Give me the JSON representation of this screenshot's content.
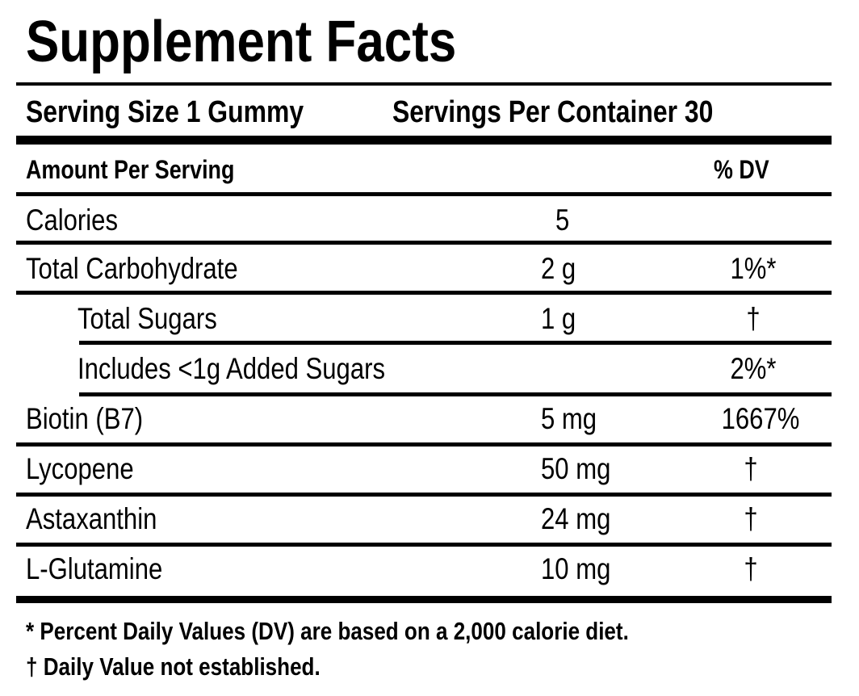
{
  "title": "Supplement Facts",
  "serving_size": "Serving Size 1 Gummy",
  "servings_per_container": "Servings Per Container 30",
  "amount_header": "Amount Per Serving",
  "dv_header": "% DV",
  "rows": [
    {
      "name": "Calories",
      "amount": "5",
      "dv": ""
    },
    {
      "name": "Total Carbohydrate",
      "amount": "2 g",
      "dv": "1%*"
    },
    {
      "name": "Total Sugars",
      "amount": "1 g",
      "dv": "†"
    },
    {
      "name": "Includes <1g Added Sugars",
      "amount": "",
      "dv": "2%*"
    },
    {
      "name": "Biotin (B7)",
      "amount": "5 mg",
      "dv": "1667%"
    },
    {
      "name": "Lycopene",
      "amount": "50 mg",
      "dv": "†"
    },
    {
      "name": "Astaxanthin",
      "amount": "24 mg",
      "dv": "†"
    },
    {
      "name": "L-Glutamine",
      "amount": "10 mg",
      "dv": "†"
    }
  ],
  "footnotes": [
    "* Percent Daily Values (DV) are based on a 2,000 calorie diet.",
    "† Daily Value not established."
  ]
}
